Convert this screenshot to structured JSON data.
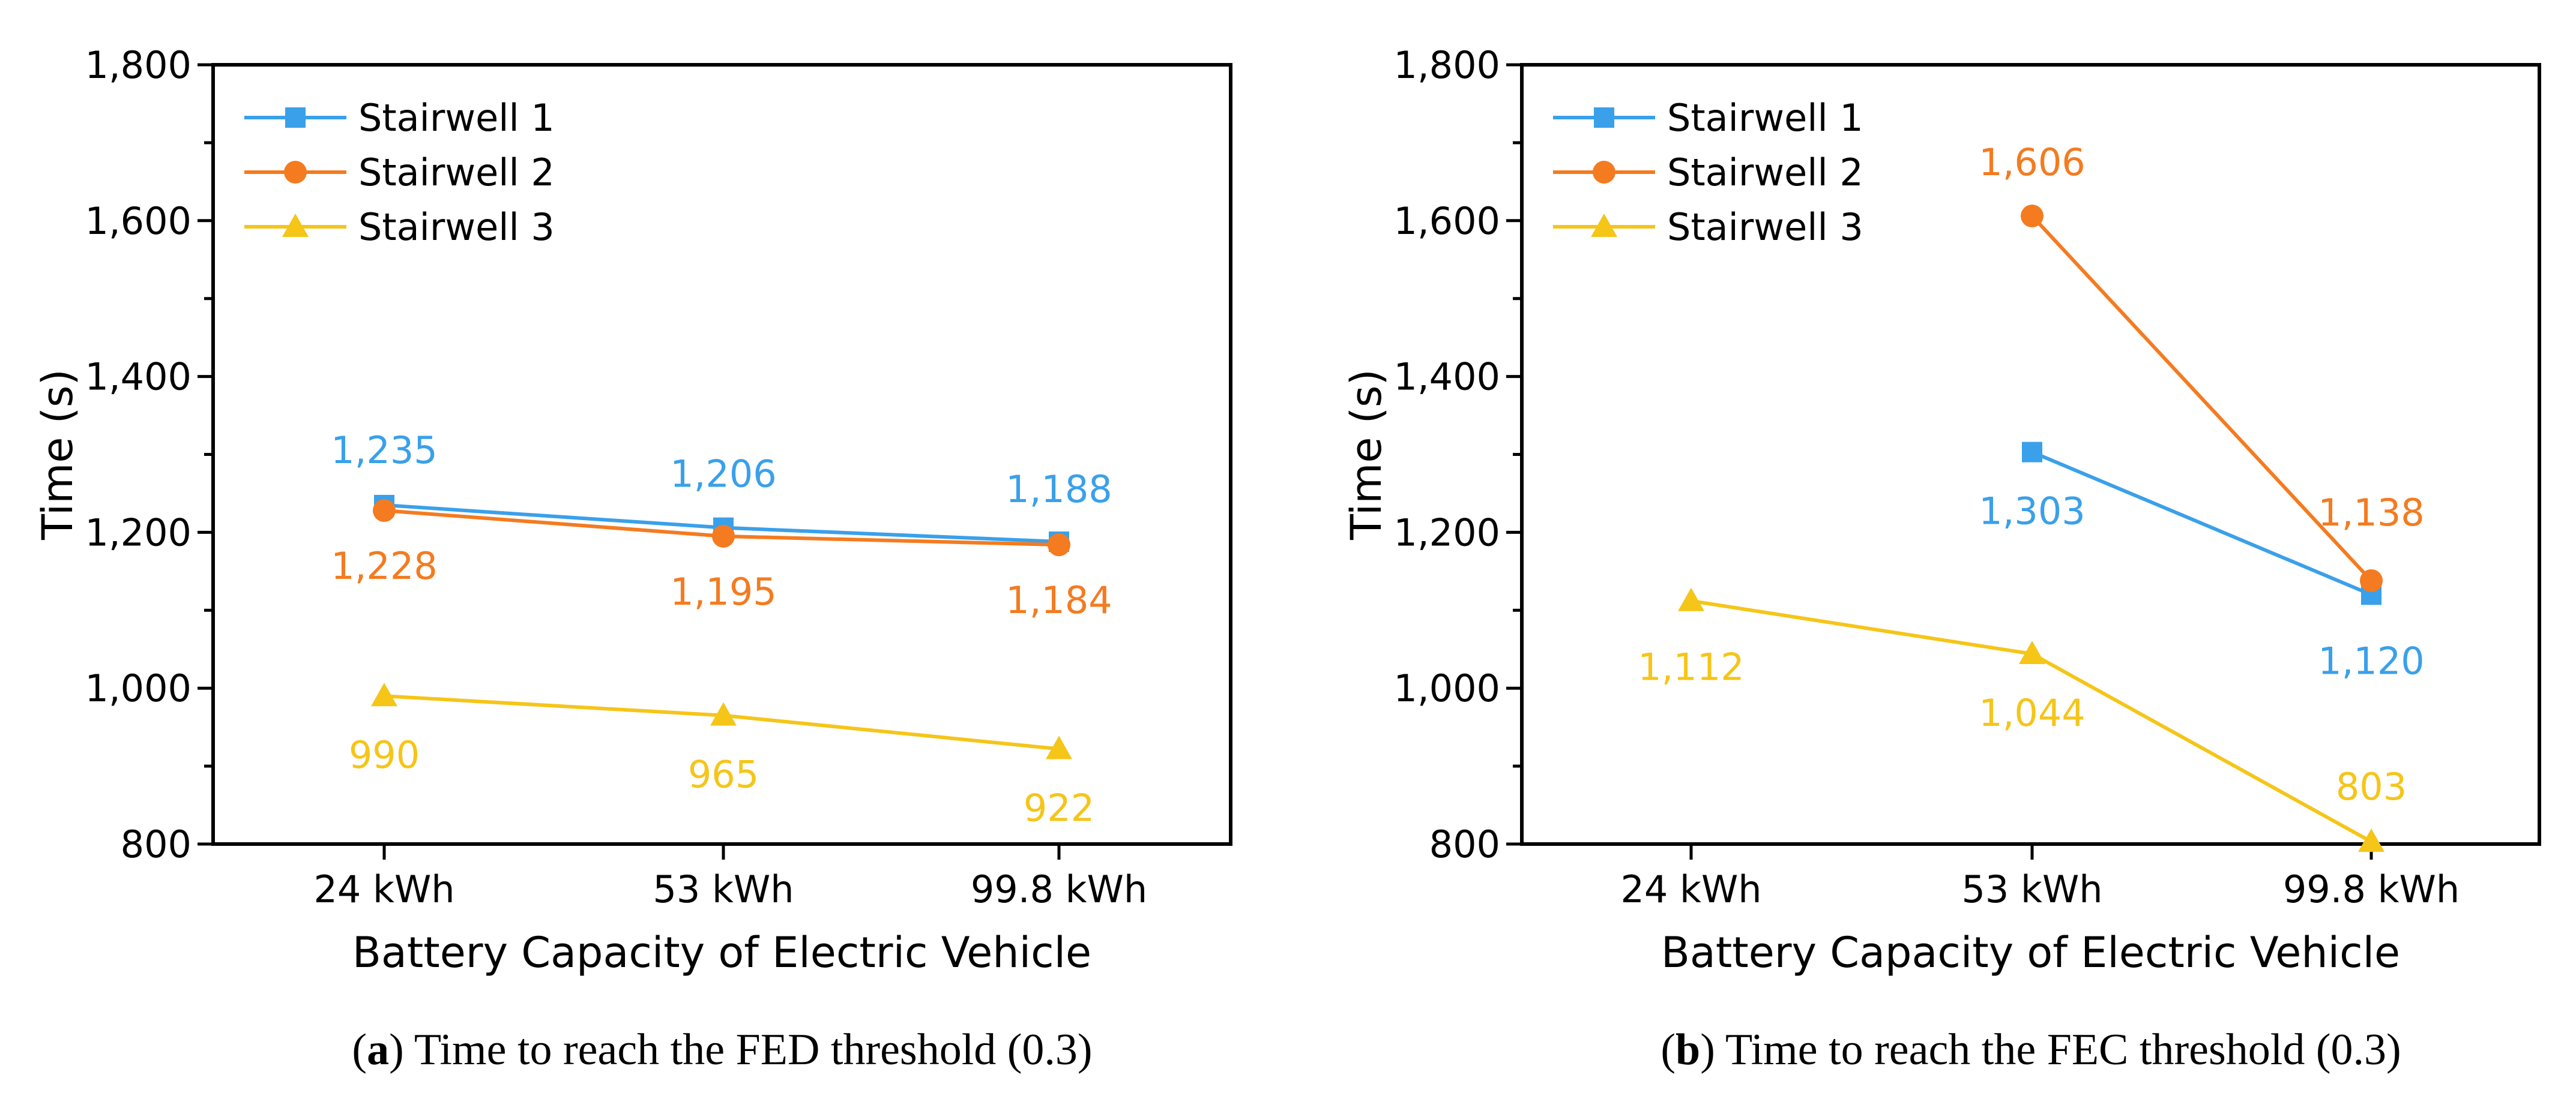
{
  "colors": {
    "stairwell_1": "#3aa0ea",
    "stairwell_2": "#f47b20",
    "stairwell_3": "#f5c518",
    "axis": "#000000"
  },
  "chart_data": [
    {
      "id": "a",
      "type": "line",
      "caption_letter": "a",
      "caption_text": ") Time to reach the FED threshold (0.3)",
      "caption_open": "(",
      "xlabel": "Battery Capacity of Electric Vehicle",
      "ylabel": "Time (s)",
      "categories": [
        "24 kWh",
        "53 kWh",
        "99.8 kWh"
      ],
      "ylim": [
        800,
        1800
      ],
      "yticks": [
        800,
        1000,
        1200,
        1400,
        1600,
        1800
      ],
      "ytick_labels": [
        "800",
        "1,000",
        "1,200",
        "1,400",
        "1,600",
        "1,800"
      ],
      "legend_position": "top-left",
      "series": [
        {
          "name": "Stairwell 1",
          "marker": "square",
          "color_key": "stairwell_1",
          "label_side": "above",
          "values": [
            1235,
            1206,
            1188
          ],
          "labels": [
            "1,235",
            "1,206",
            "1,188"
          ]
        },
        {
          "name": "Stairwell 2",
          "marker": "circle",
          "color_key": "stairwell_2",
          "label_side": "below",
          "values": [
            1228,
            1195,
            1184
          ],
          "labels": [
            "1,228",
            "1,195",
            "1,184"
          ]
        },
        {
          "name": "Stairwell 3",
          "marker": "triangle",
          "color_key": "stairwell_3",
          "label_side": "below",
          "values": [
            990,
            965,
            922
          ],
          "labels": [
            "990",
            "965",
            "922"
          ]
        }
      ]
    },
    {
      "id": "b",
      "type": "line",
      "caption_letter": "b",
      "caption_text": ") Time to reach the FEC threshold (0.3)",
      "caption_open": "(",
      "xlabel": "Battery Capacity of Electric Vehicle",
      "ylabel": "Time (s)",
      "categories": [
        "24 kWh",
        "53 kWh",
        "99.8 kWh"
      ],
      "ylim": [
        800,
        1800
      ],
      "yticks": [
        800,
        1000,
        1200,
        1400,
        1600,
        1800
      ],
      "ytick_labels": [
        "800",
        "1,000",
        "1,200",
        "1,400",
        "1,600",
        "1,800"
      ],
      "legend_position": "top-left",
      "series": [
        {
          "name": "Stairwell 1",
          "marker": "square",
          "color_key": "stairwell_1",
          "label_side": "mixed",
          "values": [
            null,
            1303,
            1120
          ],
          "labels": [
            null,
            "1,303",
            "1,120"
          ]
        },
        {
          "name": "Stairwell 2",
          "marker": "circle",
          "color_key": "stairwell_2",
          "label_side": "above",
          "values": [
            null,
            1606,
            1138
          ],
          "labels": [
            null,
            "1,606",
            "1,138"
          ]
        },
        {
          "name": "Stairwell 3",
          "marker": "triangle",
          "color_key": "stairwell_3",
          "label_side": "mixed",
          "values": [
            1112,
            1044,
            803
          ],
          "labels": [
            "1,112",
            "1,044",
            "803"
          ]
        }
      ]
    }
  ]
}
